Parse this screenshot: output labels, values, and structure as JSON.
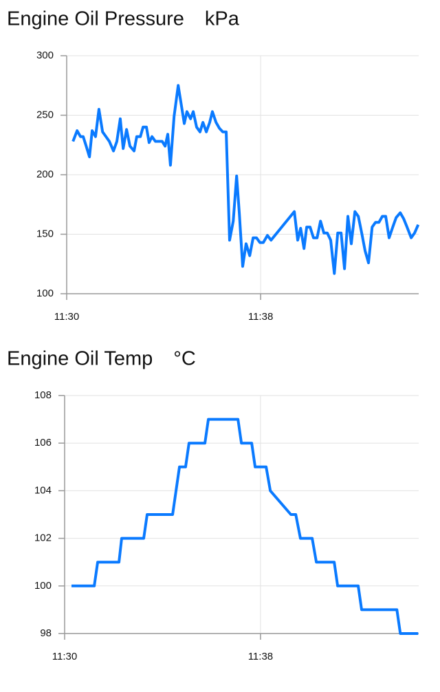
{
  "chart_data": [
    {
      "type": "line",
      "title": "Engine Oil Pressure",
      "unit": "kPa",
      "x": [
        690.26,
        690.43,
        690.57,
        690.68,
        690.79,
        690.94,
        691.05,
        691.19,
        691.33,
        691.48,
        691.62,
        691.76,
        691.93,
        692.07,
        692.21,
        692.33,
        692.47,
        692.61,
        692.78,
        692.89,
        693.04,
        693.15,
        693.29,
        693.4,
        693.52,
        693.66,
        693.8,
        693.94,
        694.06,
        694.17,
        694.28,
        694.43,
        694.6,
        694.71,
        694.85,
        694.96,
        695.11,
        695.22,
        695.36,
        695.5,
        695.62,
        695.76,
        695.9,
        696.01,
        696.16,
        696.3,
        696.44,
        696.58,
        696.72,
        696.87,
        697.01,
        697.12,
        697.26,
        697.4,
        697.55,
        697.69,
        697.83,
        697.97,
        698.11,
        698.28,
        698.43,
        699.39,
        699.53,
        699.65,
        699.79,
        699.9,
        700.04,
        700.18,
        700.33,
        700.47,
        700.61,
        700.75,
        700.89,
        701.04,
        701.18,
        701.32,
        701.46,
        701.6,
        701.74,
        701.89,
        702.03,
        702.17,
        702.31,
        702.45,
        702.6,
        702.74,
        702.88,
        703.02,
        703.16,
        703.3,
        703.45,
        703.59,
        703.76,
        703.9,
        704.04,
        704.21,
        704.35,
        704.5
      ],
      "series": [
        {
          "name": "Engine Oil Pressure",
          "color": "#0a7aff",
          "values": [
            228,
            237,
            232,
            232,
            225,
            215,
            237,
            232,
            255,
            236,
            232,
            228,
            220,
            228,
            247,
            222,
            238,
            224,
            220,
            232,
            232,
            240,
            240,
            227,
            232,
            228,
            228,
            228,
            224,
            234,
            208,
            249,
            275,
            261,
            243,
            253,
            247,
            253,
            240,
            236,
            244,
            236,
            244,
            253,
            244,
            239,
            236,
            236,
            145,
            161,
            199,
            168,
            123,
            142,
            132,
            147,
            147,
            143,
            143,
            149,
            145,
            169,
            145,
            155,
            138,
            156,
            156,
            147,
            147,
            161,
            151,
            151,
            145,
            117,
            151,
            151,
            121,
            165,
            142,
            169,
            165,
            151,
            136,
            126,
            156,
            160,
            160,
            165,
            165,
            147,
            156,
            164,
            168,
            163,
            156,
            147,
            151,
            158
          ]
        }
      ],
      "xlim": [
        690,
        704.52
      ],
      "xticks": [
        {
          "value": 690,
          "label": "11:30"
        },
        {
          "value": 698,
          "label": "11:38"
        }
      ],
      "ylim": [
        100,
        300
      ],
      "yticks": [
        100,
        150,
        200,
        250,
        300
      ],
      "grid": true
    },
    {
      "type": "line",
      "title": "Engine Oil Temp",
      "unit": "°C",
      "x": [
        690.28,
        691.21,
        691.35,
        692.22,
        692.33,
        693.23,
        693.37,
        694.41,
        694.69,
        694.94,
        695.08,
        695.73,
        695.87,
        697.08,
        697.22,
        697.64,
        697.78,
        698.23,
        698.4,
        699.24,
        699.44,
        699.63,
        700.11,
        700.28,
        701.01,
        701.15,
        701.99,
        702.13,
        703.57,
        703.71,
        704.44
      ],
      "series": [
        {
          "name": "Engine Oil Temp",
          "color": "#0a7aff",
          "values": [
            100,
            100,
            101,
            101,
            102,
            102,
            103,
            103,
            105,
            105,
            106,
            106,
            107,
            107,
            106,
            106,
            105,
            105,
            104,
            103,
            103,
            102,
            102,
            101,
            101,
            100,
            100,
            99,
            99,
            98,
            98
          ]
        }
      ],
      "xlim": [
        690,
        704.46
      ],
      "xticks": [
        {
          "value": 690,
          "label": "11:30"
        },
        {
          "value": 698,
          "label": "11:38"
        }
      ],
      "ylim": [
        98,
        108
      ],
      "yticks": [
        98,
        100,
        102,
        104,
        106,
        108
      ],
      "grid": true
    }
  ]
}
